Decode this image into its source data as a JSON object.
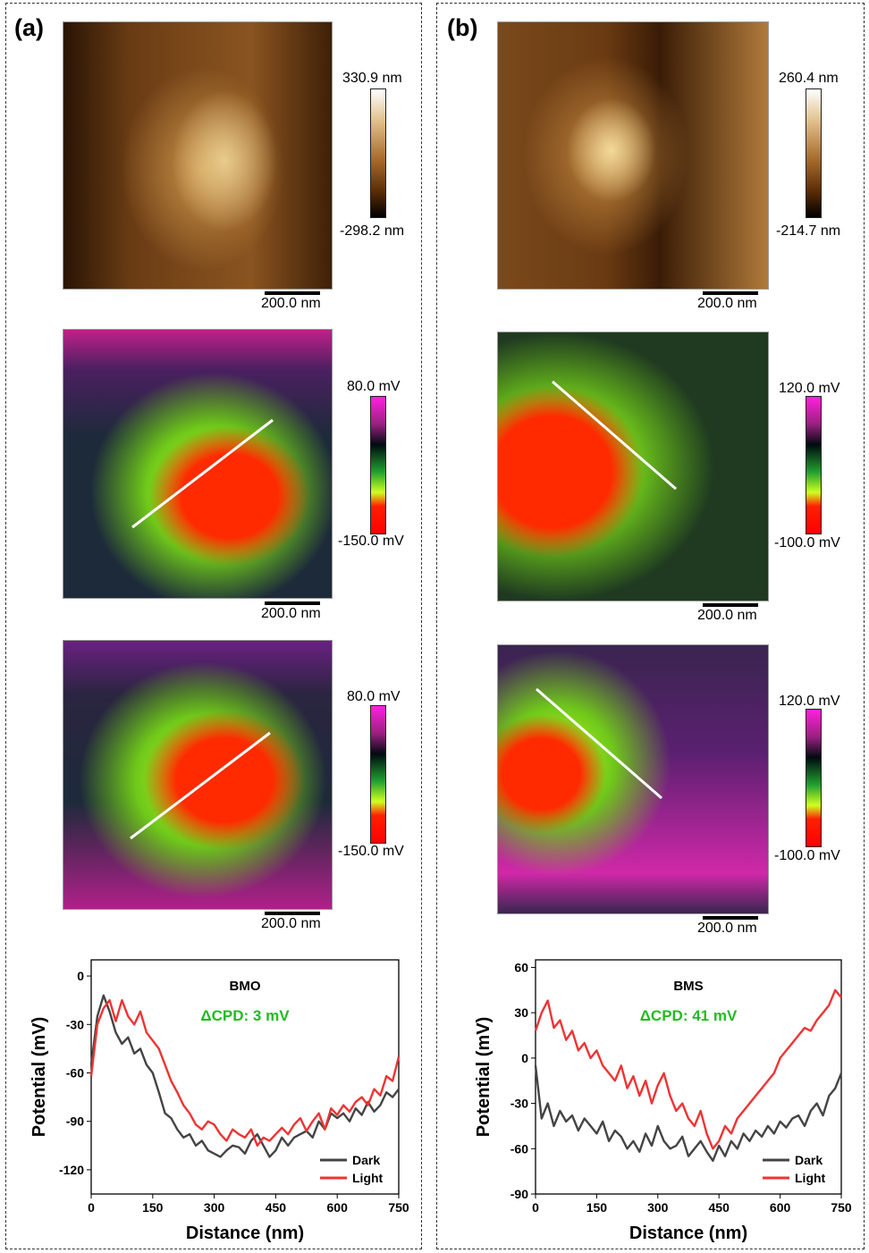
{
  "panels": [
    {
      "label": "(a)",
      "maps": [
        {
          "kind": "topography",
          "cb_max": "330.9 nm",
          "cb_min": "-298.2 nm",
          "scalebar": "200.0 nm"
        },
        {
          "kind": "kpfm-dark",
          "cb_max": "80.0 mV",
          "cb_min": "-150.0 mV",
          "scalebar": "200.0 nm"
        },
        {
          "kind": "kpfm-light",
          "cb_max": "80.0 mV",
          "cb_min": "-150.0 mV",
          "scalebar": "200.0 nm"
        }
      ]
    },
    {
      "label": "(b)",
      "maps": [
        {
          "kind": "topography",
          "cb_max": "260.4 nm",
          "cb_min": "-214.7 nm",
          "scalebar": "200.0 nm"
        },
        {
          "kind": "kpfm-dark",
          "cb_max": "120.0 mV",
          "cb_min": "-100.0 mV",
          "scalebar": "200.0 nm"
        },
        {
          "kind": "kpfm-light",
          "cb_max": "120.0 mV",
          "cb_min": "-100.0 mV",
          "scalebar": "200.0 nm"
        }
      ]
    }
  ],
  "colors": {
    "dark": "#444444",
    "light": "#ee3333",
    "annotation": "#22bb22"
  },
  "chart_data": [
    {
      "type": "line",
      "title": "BMO",
      "annotation": "ΔCPD: 3 mV",
      "xlabel": "Distance (nm)",
      "ylabel": "Potential (mV)",
      "xlim": [
        0,
        750
      ],
      "ylim": [
        -135,
        10
      ],
      "xticks": [
        0,
        150,
        300,
        450,
        600,
        750
      ],
      "yticks": [
        0,
        -30,
        -60,
        -90,
        -120
      ],
      "legend": "bottom-right",
      "x": [
        0,
        15,
        30,
        45,
        60,
        75,
        90,
        105,
        120,
        135,
        150,
        165,
        180,
        195,
        210,
        225,
        240,
        255,
        270,
        285,
        300,
        315,
        330,
        345,
        360,
        375,
        390,
        405,
        420,
        435,
        450,
        465,
        480,
        495,
        510,
        525,
        540,
        555,
        570,
        585,
        600,
        615,
        630,
        645,
        660,
        675,
        690,
        705,
        720,
        735,
        750
      ],
      "series": [
        {
          "name": "Dark",
          "values": [
            -55,
            -25,
            -12,
            -22,
            -35,
            -42,
            -38,
            -48,
            -45,
            -55,
            -60,
            -72,
            -85,
            -88,
            -95,
            -100,
            -98,
            -105,
            -102,
            -108,
            -110,
            -112,
            -108,
            -105,
            -106,
            -110,
            -102,
            -98,
            -105,
            -112,
            -108,
            -100,
            -105,
            -100,
            -98,
            -96,
            -100,
            -90,
            -95,
            -85,
            -88,
            -85,
            -90,
            -82,
            -86,
            -78,
            -84,
            -80,
            -72,
            -75,
            -70
          ]
        },
        {
          "name": "Light",
          "values": [
            -62,
            -30,
            -20,
            -15,
            -28,
            -15,
            -25,
            -30,
            -22,
            -35,
            -40,
            -45,
            -55,
            -65,
            -72,
            -80,
            -85,
            -92,
            -95,
            -90,
            -92,
            -98,
            -102,
            -95,
            -98,
            -100,
            -95,
            -105,
            -100,
            -102,
            -98,
            -94,
            -98,
            -92,
            -88,
            -96,
            -90,
            -85,
            -95,
            -82,
            -86,
            -80,
            -84,
            -78,
            -75,
            -80,
            -70,
            -74,
            -62,
            -65,
            -50
          ]
        }
      ]
    },
    {
      "type": "line",
      "title": "BMS",
      "annotation": "ΔCPD: 41 mV",
      "xlabel": "Distance (nm)",
      "ylabel": "Potential (mV)",
      "xlim": [
        0,
        750
      ],
      "ylim": [
        -90,
        65
      ],
      "xticks": [
        0,
        150,
        300,
        450,
        600,
        750
      ],
      "yticks": [
        60,
        30,
        0,
        -30,
        -60,
        -90
      ],
      "legend": "bottom-right",
      "x": [
        0,
        15,
        30,
        45,
        60,
        75,
        90,
        105,
        120,
        135,
        150,
        165,
        180,
        195,
        210,
        225,
        240,
        255,
        270,
        285,
        300,
        315,
        330,
        345,
        360,
        375,
        390,
        405,
        420,
        435,
        450,
        465,
        480,
        495,
        510,
        525,
        540,
        555,
        570,
        585,
        600,
        615,
        630,
        645,
        660,
        675,
        690,
        705,
        720,
        735,
        750
      ],
      "series": [
        {
          "name": "Dark",
          "values": [
            -5,
            -40,
            -30,
            -45,
            -35,
            -42,
            -38,
            -48,
            -40,
            -45,
            -50,
            -42,
            -55,
            -48,
            -52,
            -60,
            -55,
            -62,
            -50,
            -58,
            -45,
            -55,
            -60,
            -58,
            -52,
            -65,
            -60,
            -55,
            -62,
            -68,
            -58,
            -65,
            -55,
            -60,
            -50,
            -55,
            -48,
            -52,
            -45,
            -50,
            -42,
            -46,
            -40,
            -38,
            -45,
            -35,
            -30,
            -38,
            -25,
            -20,
            -10
          ]
        },
        {
          "name": "Light",
          "values": [
            18,
            30,
            38,
            20,
            25,
            12,
            18,
            5,
            10,
            0,
            5,
            -5,
            -10,
            -15,
            -5,
            -20,
            -12,
            -25,
            -15,
            -30,
            -18,
            -10,
            -25,
            -35,
            -30,
            -40,
            -45,
            -35,
            -50,
            -60,
            -55,
            -45,
            -50,
            -40,
            -35,
            -30,
            -25,
            -20,
            -15,
            -10,
            0,
            5,
            10,
            15,
            20,
            18,
            25,
            30,
            35,
            45,
            40
          ]
        }
      ]
    }
  ]
}
